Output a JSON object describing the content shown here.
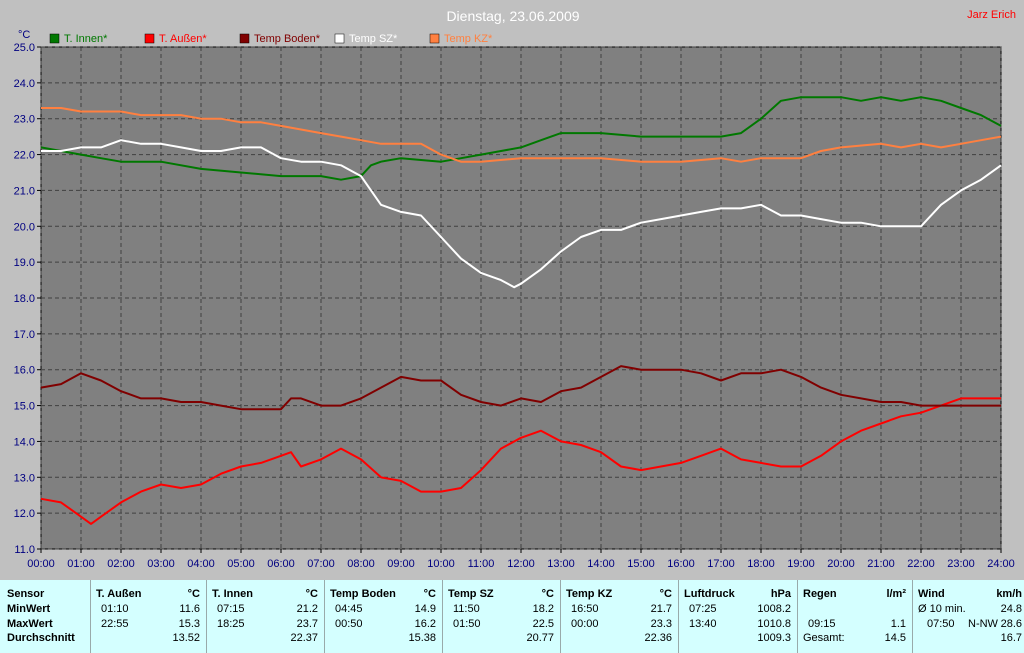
{
  "chart_data": {
    "type": "line",
    "title": "Dienstag, 23.06.2009",
    "author": "Jarz Erich",
    "ylabel": "°C",
    "ylim": [
      11.0,
      25.0
    ],
    "xlim": [
      0,
      24
    ],
    "grid": true,
    "legend_position": "top",
    "yticks": [
      "11.0",
      "12.0",
      "13.0",
      "14.0",
      "15.0",
      "16.0",
      "17.0",
      "18.0",
      "19.0",
      "20.0",
      "21.0",
      "22.0",
      "23.0",
      "24.0",
      "25.0"
    ],
    "xticks": [
      "00:00",
      "01:00",
      "02:00",
      "03:00",
      "04:00",
      "05:00",
      "06:00",
      "07:00",
      "08:00",
      "09:00",
      "10:00",
      "11:00",
      "12:00",
      "13:00",
      "14:00",
      "15:00",
      "16:00",
      "17:00",
      "18:00",
      "19:00",
      "20:00",
      "21:00",
      "22:00",
      "23:00",
      "24:00"
    ],
    "series": [
      {
        "name": "T. Innen*",
        "color": "#007800",
        "x": [
          0,
          0.5,
          1,
          1.5,
          2,
          3,
          4,
          5,
          6,
          7,
          7.5,
          8,
          8.25,
          8.5,
          9,
          10,
          10.5,
          11,
          11.5,
          12,
          12.5,
          13,
          14,
          15,
          16,
          17,
          17.5,
          18,
          18.5,
          19,
          20,
          20.5,
          21,
          21.5,
          22,
          22.5,
          23,
          23.5,
          24
        ],
        "y": [
          22.2,
          22.1,
          22.0,
          21.9,
          21.8,
          21.8,
          21.6,
          21.5,
          21.4,
          21.4,
          21.3,
          21.4,
          21.7,
          21.8,
          21.9,
          21.8,
          21.9,
          22.0,
          22.1,
          22.2,
          22.4,
          22.6,
          22.6,
          22.5,
          22.5,
          22.5,
          22.6,
          23.0,
          23.5,
          23.6,
          23.6,
          23.5,
          23.6,
          23.5,
          23.6,
          23.5,
          23.3,
          23.1,
          22.8
        ]
      },
      {
        "name": "T. Außen*",
        "color": "#ff0000",
        "x": [
          0,
          0.5,
          1,
          1.25,
          1.5,
          2,
          2.5,
          3,
          3.5,
          4,
          4.5,
          5,
          5.5,
          6,
          6.25,
          6.5,
          7,
          7.5,
          8,
          8.5,
          9,
          9.5,
          10,
          10.5,
          11,
          11.5,
          12,
          12.5,
          13,
          13.5,
          14,
          14.5,
          15,
          15.5,
          16,
          16.5,
          17,
          17.5,
          18,
          18.5,
          19,
          19.5,
          20,
          20.5,
          21,
          21.5,
          22,
          22.5,
          23,
          23.5,
          24
        ],
        "y": [
          12.4,
          12.3,
          11.9,
          11.7,
          11.9,
          12.3,
          12.6,
          12.8,
          12.7,
          12.8,
          13.1,
          13.3,
          13.4,
          13.6,
          13.7,
          13.3,
          13.5,
          13.8,
          13.5,
          13.0,
          12.9,
          12.6,
          12.6,
          12.7,
          13.2,
          13.8,
          14.1,
          14.3,
          14.0,
          13.9,
          13.7,
          13.3,
          13.2,
          13.3,
          13.4,
          13.6,
          13.8,
          13.5,
          13.4,
          13.3,
          13.3,
          13.6,
          14.0,
          14.3,
          14.5,
          14.7,
          14.8,
          15.0,
          15.2,
          15.2,
          15.2
        ]
      },
      {
        "name": "Temp Boden*",
        "color": "#800000",
        "x": [
          0,
          0.5,
          1,
          1.5,
          2,
          2.5,
          3,
          3.5,
          4,
          4.5,
          5,
          5.5,
          6,
          6.25,
          6.5,
          7,
          7.5,
          8,
          8.5,
          9,
          9.5,
          10,
          10.5,
          11,
          11.5,
          12,
          12.5,
          13,
          13.5,
          14,
          14.5,
          15,
          15.5,
          16,
          16.5,
          17,
          17.5,
          18,
          18.5,
          19,
          19.5,
          20,
          20.5,
          21,
          21.5,
          22,
          23,
          24
        ],
        "y": [
          15.5,
          15.6,
          15.9,
          15.7,
          15.4,
          15.2,
          15.2,
          15.1,
          15.1,
          15.0,
          14.9,
          14.9,
          14.9,
          15.2,
          15.2,
          15.0,
          15.0,
          15.2,
          15.5,
          15.8,
          15.7,
          15.7,
          15.3,
          15.1,
          15.0,
          15.2,
          15.1,
          15.4,
          15.5,
          15.8,
          16.1,
          16.0,
          16.0,
          16.0,
          15.9,
          15.7,
          15.9,
          15.9,
          16.0,
          15.8,
          15.5,
          15.3,
          15.2,
          15.1,
          15.1,
          15.0,
          15.0,
          15.0
        ]
      },
      {
        "name": "Temp SZ*",
        "color": "#ffffff",
        "x": [
          0,
          0.5,
          1,
          1.5,
          2,
          2.5,
          3,
          3.5,
          4,
          4.5,
          5,
          5.5,
          6,
          6.5,
          7,
          7.5,
          8,
          8.5,
          9,
          9.5,
          10,
          10.5,
          11,
          11.5,
          11.83,
          12,
          12.5,
          13,
          13.5,
          14,
          14.5,
          15,
          15.5,
          16,
          16.5,
          17,
          17.5,
          18,
          18.5,
          19,
          19.5,
          20,
          20.5,
          21,
          21.5,
          22,
          22.5,
          23,
          23.5,
          24
        ],
        "y": [
          22.1,
          22.1,
          22.2,
          22.2,
          22.4,
          22.3,
          22.3,
          22.2,
          22.1,
          22.1,
          22.2,
          22.2,
          21.9,
          21.8,
          21.8,
          21.7,
          21.4,
          20.6,
          20.4,
          20.3,
          19.7,
          19.1,
          18.7,
          18.5,
          18.3,
          18.4,
          18.8,
          19.3,
          19.7,
          19.9,
          19.9,
          20.1,
          20.2,
          20.3,
          20.4,
          20.5,
          20.5,
          20.6,
          20.3,
          20.3,
          20.2,
          20.1,
          20.1,
          20.0,
          20.0,
          20.0,
          20.6,
          21.0,
          21.3,
          21.7
        ]
      },
      {
        "name": "Temp KZ*",
        "color": "#ff8040",
        "x": [
          0,
          0.5,
          1,
          1.5,
          2,
          2.5,
          3,
          3.5,
          4,
          4.5,
          5,
          5.5,
          6,
          6.5,
          7,
          7.5,
          8,
          8.5,
          9,
          9.5,
          10,
          10.5,
          11,
          12,
          13,
          14,
          15,
          16,
          17,
          17.5,
          18,
          18.5,
          19,
          19.5,
          20,
          21,
          21.5,
          22,
          22.5,
          23,
          23.5,
          24
        ],
        "y": [
          23.3,
          23.3,
          23.2,
          23.2,
          23.2,
          23.1,
          23.1,
          23.1,
          23.0,
          23.0,
          22.9,
          22.9,
          22.8,
          22.7,
          22.6,
          22.5,
          22.4,
          22.3,
          22.3,
          22.3,
          22.0,
          21.8,
          21.8,
          21.9,
          21.9,
          21.9,
          21.8,
          21.8,
          21.9,
          21.8,
          21.9,
          21.9,
          21.9,
          22.1,
          22.2,
          22.3,
          22.2,
          22.3,
          22.2,
          22.3,
          22.4,
          22.5
        ]
      }
    ]
  },
  "stats": {
    "row_labels": [
      "Sensor",
      "MinWert",
      "MaxWert",
      "Durchschnitt"
    ],
    "blocks": [
      {
        "name": "T. Außen",
        "unit": "°C",
        "min_time": "01:10",
        "min_value": "11.6",
        "max_time": "22:55",
        "max_value": "15.3",
        "avg": "13.52"
      },
      {
        "name": "T. Innen",
        "unit": "°C",
        "min_time": "07:15",
        "min_value": "21.2",
        "max_time": "18:25",
        "max_value": "23.7",
        "avg": "22.37"
      },
      {
        "name": "Temp Boden",
        "unit": "°C",
        "min_time": "04:45",
        "min_value": "14.9",
        "max_time": "00:50",
        "max_value": "16.2",
        "avg": "15.38"
      },
      {
        "name": "Temp SZ",
        "unit": "°C",
        "min_time": "11:50",
        "min_value": "18.2",
        "max_time": "01:50",
        "max_value": "22.5",
        "avg": "20.77"
      },
      {
        "name": "Temp KZ",
        "unit": "°C",
        "min_time": "16:50",
        "min_value": "21.7",
        "max_time": "00:00",
        "max_value": "23.3",
        "avg": "22.36"
      },
      {
        "name": "Luftdruck",
        "unit": "hPa",
        "min_time": "07:25",
        "min_value": "1008.2",
        "max_time": "13:40",
        "max_value": "1010.8",
        "avg": "1009.3"
      }
    ],
    "rain": {
      "name": "Regen",
      "unit": "l/m²",
      "row2_time": "09:15",
      "row2_value": "1.1",
      "total_label": "Gesamt:",
      "total_value": "14.5"
    },
    "wind": {
      "name": "Wind",
      "unit": "km/h",
      "avg_label": "Ø 10 min.",
      "avg_value": "24.8",
      "max_time": "07:50",
      "max_dir": "N-NW",
      "max_value": "28.6",
      "last_value": "16.7"
    }
  }
}
